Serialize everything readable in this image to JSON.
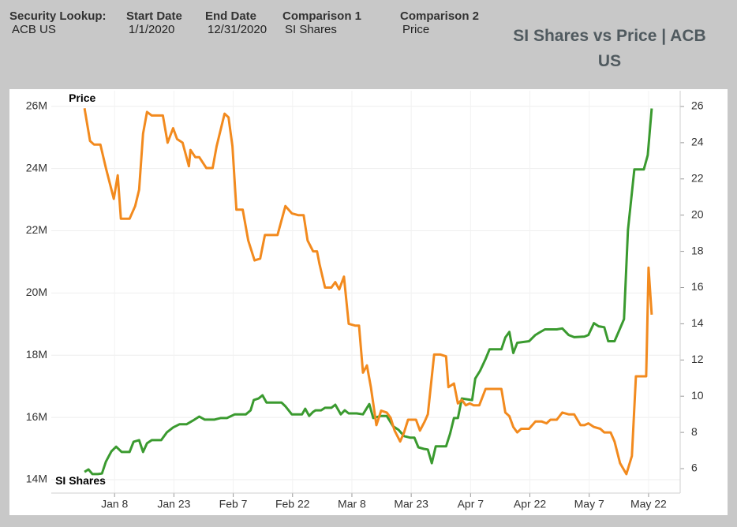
{
  "header": {
    "filters": [
      {
        "label": "Security Lookup:",
        "value": "ACB US"
      },
      {
        "label": "Start Date",
        "value": "1/1/2020"
      },
      {
        "label": "End Date",
        "value": "12/31/2020"
      },
      {
        "label": "Comparison 1",
        "value": "SI Shares"
      },
      {
        "label": "Comparison 2",
        "value": "Price"
      }
    ]
  },
  "chart_data": {
    "type": "line",
    "title": "SI Shares vs Price | ACB US",
    "grid": true,
    "xlim": [
      -8,
      151
    ],
    "xticks": [
      {
        "value": 8,
        "label": "Jan 8"
      },
      {
        "value": 23,
        "label": "Jan 23"
      },
      {
        "value": 38,
        "label": "Feb 7"
      },
      {
        "value": 53,
        "label": "Feb 22"
      },
      {
        "value": 68,
        "label": "Mar 8"
      },
      {
        "value": 83,
        "label": "Mar 23"
      },
      {
        "value": 98,
        "label": "Apr 7"
      },
      {
        "value": 113,
        "label": "Apr 22"
      },
      {
        "value": 128,
        "label": "May 7"
      },
      {
        "value": 143,
        "label": "May 22"
      }
    ],
    "ylim": [
      13570000,
      26500000
    ],
    "yticks": [
      {
        "value": 14000000,
        "label": "14M"
      },
      {
        "value": 16000000,
        "label": "16M"
      },
      {
        "value": 18000000,
        "label": "18M"
      },
      {
        "value": 20000000,
        "label": "20M"
      },
      {
        "value": 22000000,
        "label": "22M"
      },
      {
        "value": 24000000,
        "label": "24M"
      },
      {
        "value": 26000000,
        "label": "26M"
      }
    ],
    "y2lim": [
      4.65,
      26.87
    ],
    "y2ticks": [
      6,
      8,
      10,
      12,
      14,
      16,
      18,
      20,
      22,
      24,
      26
    ],
    "series": [
      {
        "name": "SI Shares",
        "color": "#3a9a2f",
        "x": [
          0.4,
          1.4,
          2.4,
          3.8,
          4.8,
          5.8,
          7.2,
          8.4,
          9.8,
          11.8,
          12.8,
          14.2,
          15.2,
          16.2,
          17.4,
          19.8,
          21.2,
          22.8,
          24.4,
          26.2,
          27.8,
          29.4,
          30.8,
          31.8,
          33.2,
          34.8,
          36.4,
          37.2,
          38.4,
          39.8,
          41.2,
          42.4,
          43.2,
          44.4,
          45.4,
          46.4,
          47.8,
          50.2,
          51.2,
          52.8,
          54.4,
          55.4,
          56.2,
          57.2,
          58.2,
          58.8,
          60.2,
          61.2,
          62.8,
          63.8,
          65.2,
          66.2,
          67.2,
          69.2,
          70.8,
          72.4,
          73.4,
          75.4,
          76.8,
          78.4,
          79.8,
          81.2,
          82.8,
          83.8,
          84.8,
          86.2,
          87.2,
          88.2,
          89.2,
          91.8,
          92.8,
          93.8,
          94.8,
          95.8,
          98.4,
          99.2,
          100.4,
          101.8,
          102.8,
          105.8,
          106.8,
          107.8,
          108.8,
          109.8,
          112.8,
          114.4,
          115.4,
          116.8,
          119.8,
          121.2,
          122.8,
          124.2,
          126.8,
          127.8,
          129.2,
          130.4,
          131.8,
          132.8,
          134.4,
          135.8,
          136.8,
          137.8,
          139.4,
          141.8,
          142.8,
          143.8
        ],
        "values": [
          14250000,
          14330000,
          14180000,
          14180000,
          14200000,
          14580000,
          14910000,
          15060000,
          14890000,
          14890000,
          15220000,
          15270000,
          14890000,
          15170000,
          15270000,
          15270000,
          15520000,
          15680000,
          15780000,
          15780000,
          15900000,
          16030000,
          15930000,
          15930000,
          15930000,
          15980000,
          15980000,
          16030000,
          16100000,
          16100000,
          16100000,
          16230000,
          16560000,
          16610000,
          16710000,
          16480000,
          16480000,
          16480000,
          16360000,
          16100000,
          16100000,
          16100000,
          16280000,
          16050000,
          16180000,
          16230000,
          16230000,
          16310000,
          16310000,
          16410000,
          16100000,
          16230000,
          16130000,
          16130000,
          16100000,
          16430000,
          15980000,
          16050000,
          16050000,
          15720000,
          15600000,
          15400000,
          15350000,
          15350000,
          15040000,
          14990000,
          14970000,
          14530000,
          15070000,
          15070000,
          15470000,
          15980000,
          15980000,
          16610000,
          16560000,
          17250000,
          17500000,
          17880000,
          18190000,
          18190000,
          18570000,
          18750000,
          18070000,
          18400000,
          18450000,
          18650000,
          18730000,
          18830000,
          18830000,
          18860000,
          18650000,
          18580000,
          18600000,
          18650000,
          19030000,
          18930000,
          18900000,
          18450000,
          18450000,
          18860000,
          19160000,
          22020000,
          23970000,
          23970000,
          24430000,
          25930000
        ]
      },
      {
        "name": "Price",
        "color": "#f28a1e",
        "axis": "y2",
        "x": [
          0.4,
          1.8,
          2.8,
          4.4,
          5.8,
          7.8,
          8.8,
          9.6,
          11.8,
          13.2,
          14.2,
          15.2,
          16.2,
          17.4,
          18.8,
          20.2,
          21.4,
          22.8,
          23.8,
          25.2,
          26.8,
          27.2,
          28.4,
          29.4,
          31.2,
          32.8,
          33.8,
          35.8,
          36.8,
          37.8,
          38.8,
          40.4,
          41.8,
          43.4,
          44.8,
          46.0,
          47.8,
          49.2,
          51.2,
          52.8,
          54.4,
          55.8,
          56.8,
          58.2,
          59.2,
          59.8,
          61.2,
          62.8,
          63.8,
          64.8,
          66.0,
          67.2,
          68.8,
          69.8,
          70.8,
          71.8,
          72.8,
          74.2,
          75.4,
          76.8,
          77.8,
          78.8,
          80.2,
          81.2,
          82.2,
          84.2,
          85.2,
          86.4,
          87.2,
          88.8,
          90.4,
          91.8,
          92.4,
          93.8,
          94.8,
          95.8,
          96.8,
          97.8,
          98.8,
          100.2,
          101.8,
          102.8,
          104.8,
          105.8,
          106.8,
          107.8,
          108.8,
          109.8,
          110.8,
          112.8,
          114.4,
          116.0,
          117.2,
          118.2,
          119.8,
          121.2,
          122.8,
          124.2,
          125.8,
          126.8,
          127.8,
          129.2,
          130.8,
          131.8,
          133.4,
          134.4,
          135.8,
          137.4,
          138.8,
          139.8,
          141.2,
          142.4,
          143.0,
          143.8
        ],
        "values": [
          25.9,
          24.1,
          23.9,
          23.9,
          22.6,
          20.9,
          22.2,
          19.8,
          19.8,
          20.5,
          21.4,
          24.5,
          25.7,
          25.5,
          25.5,
          25.5,
          24.0,
          24.8,
          24.2,
          24.0,
          22.7,
          23.6,
          23.2,
          23.2,
          22.6,
          22.6,
          23.8,
          25.6,
          25.4,
          23.8,
          20.3,
          20.3,
          18.6,
          17.5,
          17.6,
          18.9,
          18.9,
          18.9,
          20.5,
          20.1,
          20.0,
          20.0,
          18.6,
          18.0,
          18.0,
          17.3,
          16.0,
          16.0,
          16.3,
          15.9,
          16.6,
          14.0,
          13.9,
          13.9,
          11.3,
          11.7,
          10.5,
          8.4,
          9.2,
          9.1,
          8.8,
          8.1,
          7.5,
          8.0,
          8.7,
          8.7,
          8.1,
          8.6,
          9.0,
          12.3,
          12.3,
          12.2,
          10.5,
          10.7,
          9.6,
          9.8,
          9.5,
          9.6,
          9.5,
          9.5,
          10.4,
          10.4,
          10.4,
          10.4,
          9.1,
          8.9,
          8.3,
          8.0,
          8.2,
          8.2,
          8.6,
          8.6,
          8.5,
          8.7,
          8.7,
          9.1,
          9.0,
          9.0,
          8.4,
          8.4,
          8.5,
          8.3,
          8.2,
          8.0,
          8.0,
          7.5,
          6.3,
          5.7,
          6.7,
          11.1,
          11.1,
          11.1,
          17.1,
          14.5
        ]
      }
    ]
  }
}
